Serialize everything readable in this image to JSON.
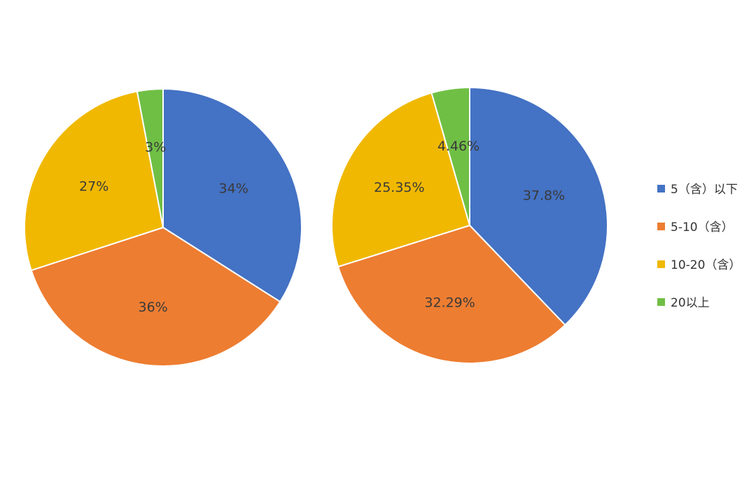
{
  "chart_data": [
    {
      "type": "pie",
      "categories": [
        "5（含）以下",
        "5-10（含）",
        "10-20（含）",
        "20以上"
      ],
      "values": [
        34,
        36,
        27,
        3
      ],
      "labels": [
        "34%",
        "36%",
        "27%",
        "3%"
      ],
      "start_angle_deg": 0,
      "direction": "clockwise"
    },
    {
      "type": "pie",
      "categories": [
        "5（含）以下",
        "5-10（含）",
        "10-20（含）",
        "20以上"
      ],
      "values": [
        37.8,
        32.29,
        25.35,
        4.46
      ],
      "labels": [
        "37.8%",
        "32.29%",
        "25.35%",
        "4.46%"
      ],
      "start_angle_deg": 0,
      "direction": "clockwise"
    }
  ],
  "legend": {
    "placement": "right",
    "items": [
      {
        "label": "5（含）以下",
        "color": "#4472C4"
      },
      {
        "label": "5-10（含）",
        "color": "#ED7D31"
      },
      {
        "label": "10-20（含）",
        "color": "#F0B800"
      },
      {
        "label": "20以上",
        "color": "#70BF45"
      }
    ]
  }
}
